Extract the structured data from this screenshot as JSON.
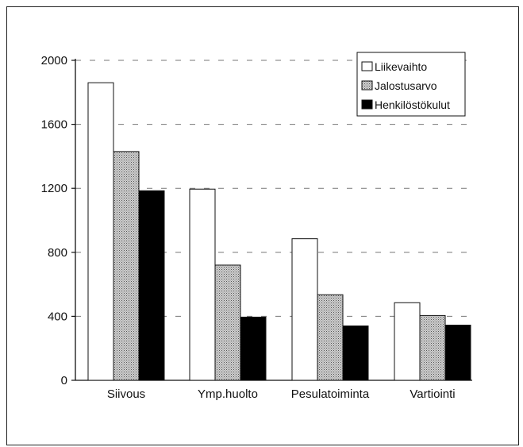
{
  "chart_data": {
    "type": "bar",
    "categories": [
      "Siivous",
      "Ymp.huolto",
      "Pesulatoiminta",
      "Vartiointi"
    ],
    "series": [
      {
        "name": "Liikevaihto",
        "values": [
          1860,
          1195,
          885,
          485
        ],
        "fill": "white"
      },
      {
        "name": "Jalostusarvo",
        "values": [
          1430,
          720,
          535,
          405
        ],
        "fill": "dotted"
      },
      {
        "name": "Henkilöstökulut",
        "values": [
          1185,
          395,
          340,
          345
        ],
        "fill": "black"
      }
    ],
    "yticks": [
      0,
      400,
      800,
      1200,
      1600,
      2000
    ],
    "ylim": [
      0,
      2000
    ],
    "grid": "horizontal dashed",
    "legend_position": "top-right"
  }
}
